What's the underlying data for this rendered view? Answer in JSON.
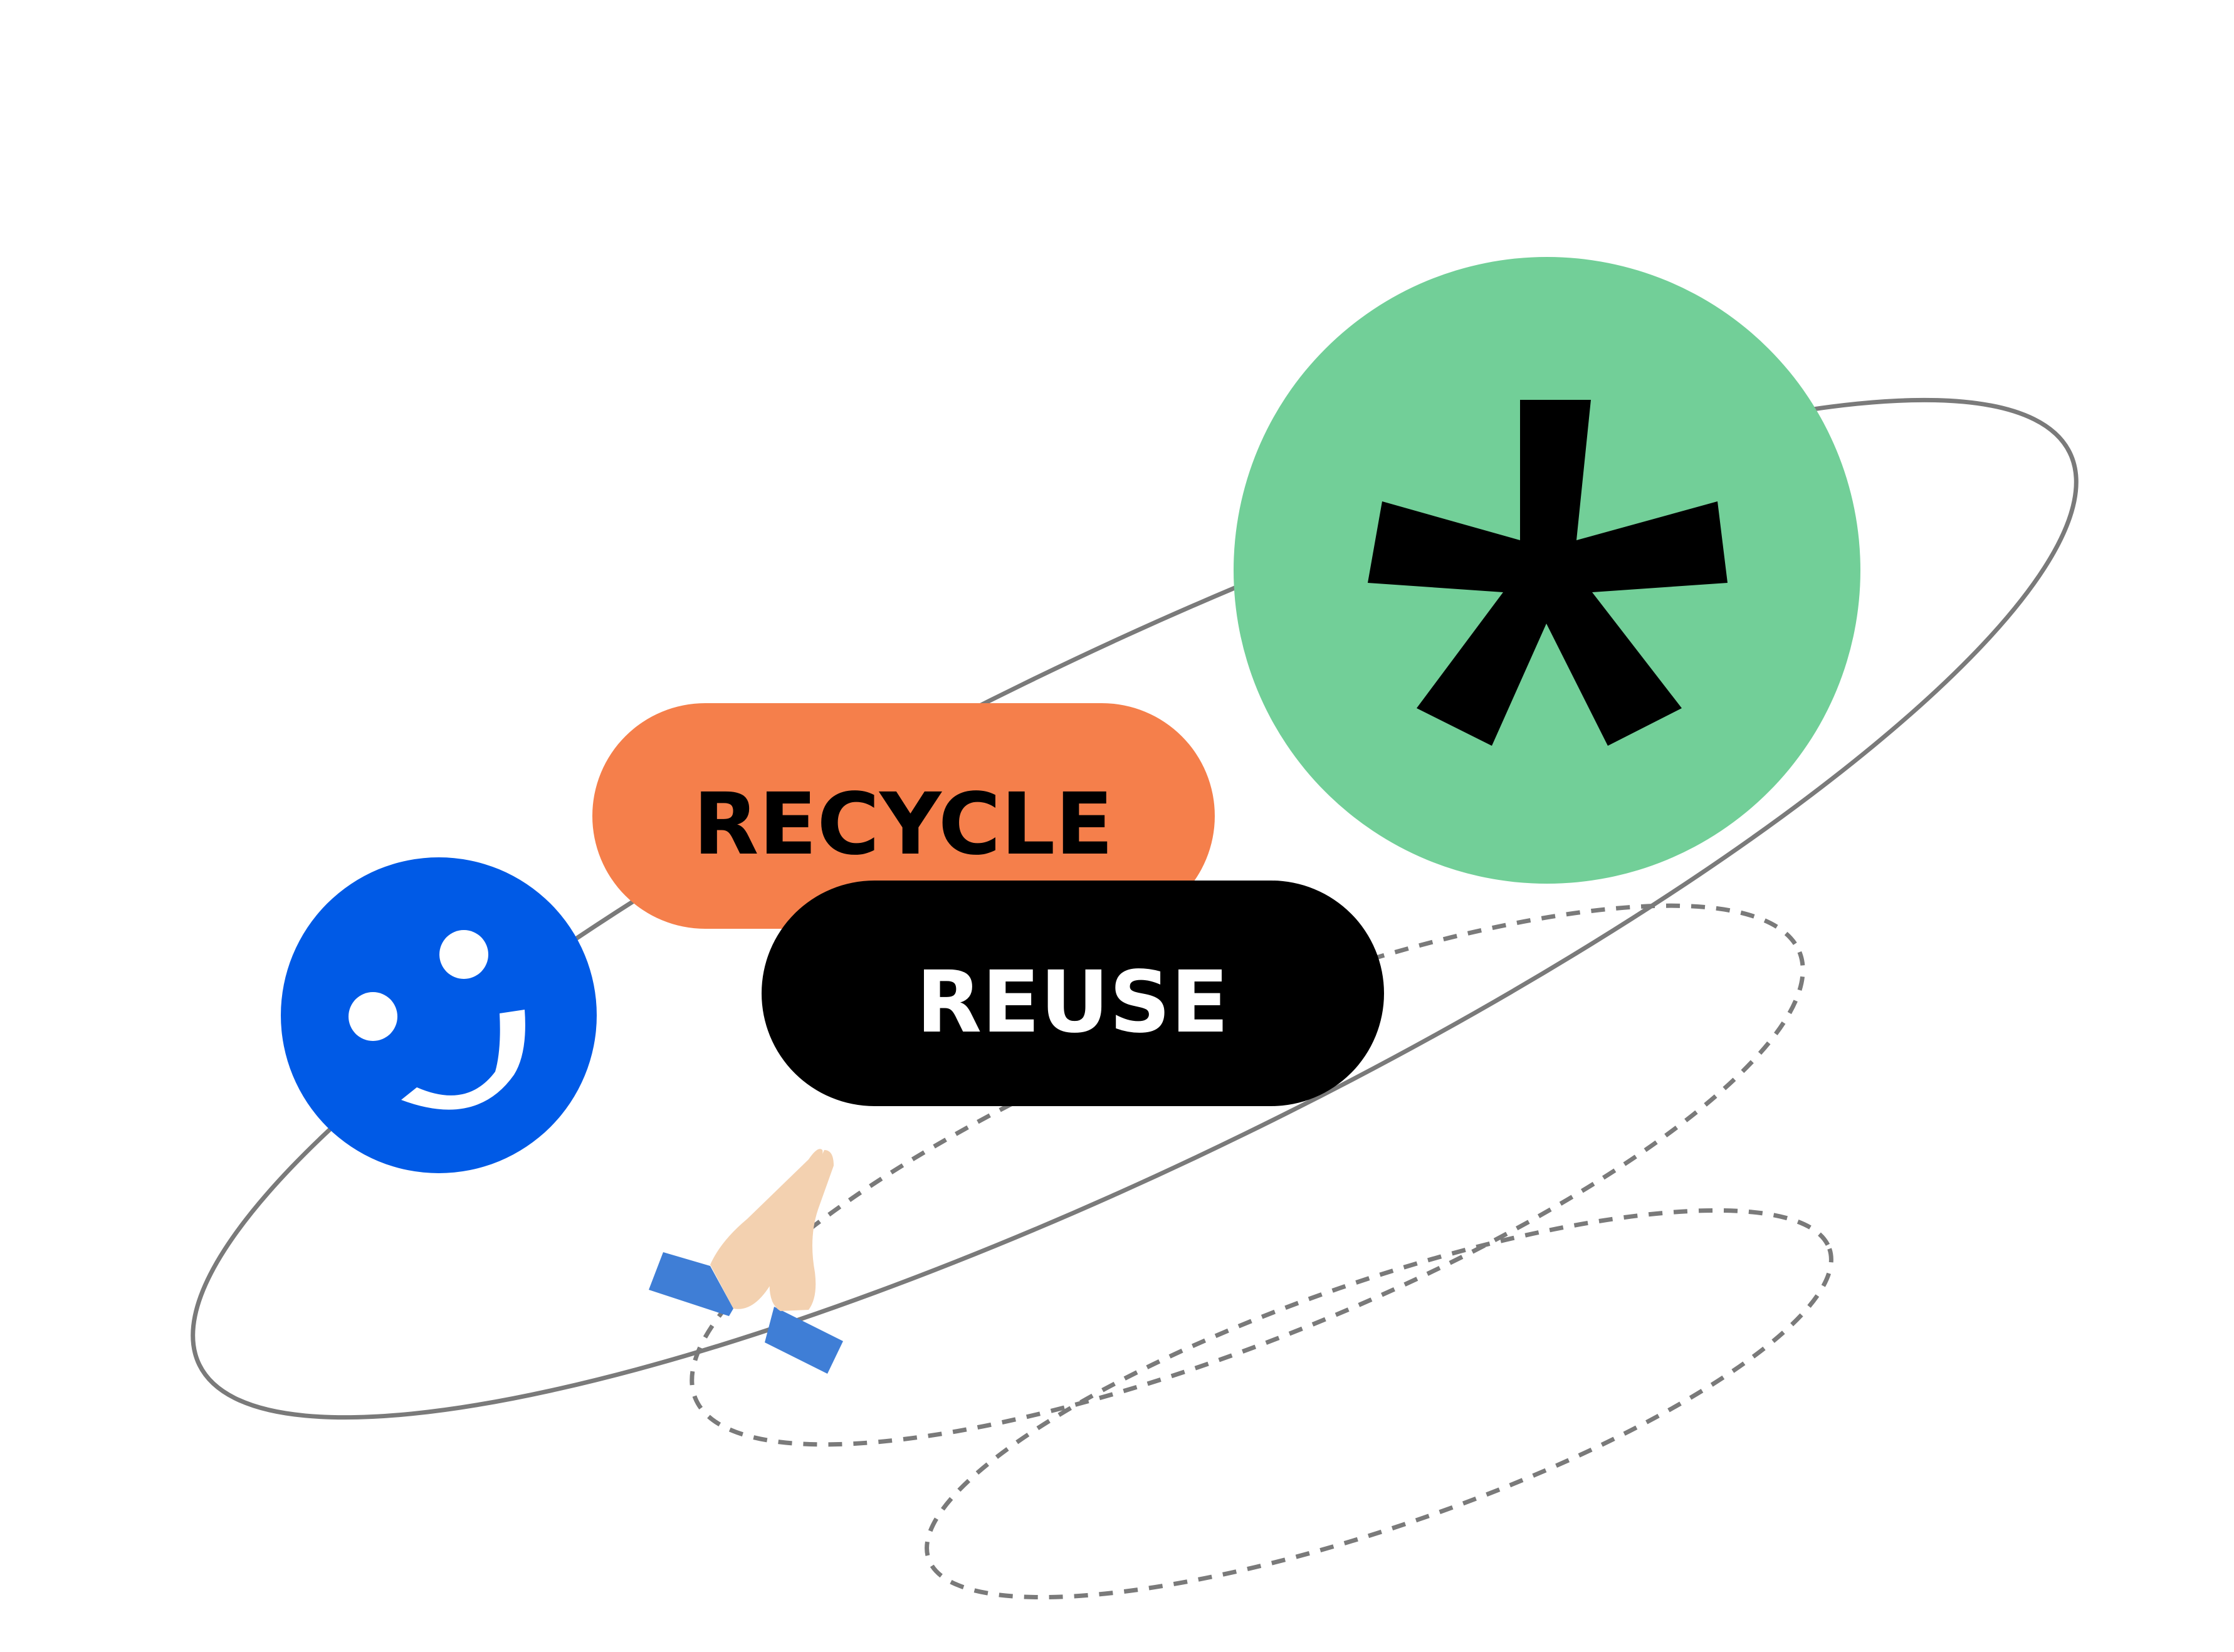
{
  "labels": {
    "recycle": "RECYCLE",
    "reuse": "REUSE"
  },
  "colors": {
    "background": "#ffffff",
    "orbit_line": "#7a7a7a",
    "dashed_line": "#7a7a7a",
    "recycle_pill": "#f57f4b",
    "reuse_pill": "#000000",
    "recycle_text": "#000000",
    "reuse_text": "#ffffff",
    "smiley_circle": "#005ae6",
    "smiley_features": "#ffffff",
    "asterisk_circle": "#72cf98",
    "asterisk": "#000000",
    "hands_skin": "#f3d1b0",
    "hands_sleeve": "#3f7ed6"
  },
  "icons": {
    "smiley": "smiley-face-icon",
    "asterisk": "asterisk-icon",
    "praying_hands": "praying-hands-icon"
  }
}
